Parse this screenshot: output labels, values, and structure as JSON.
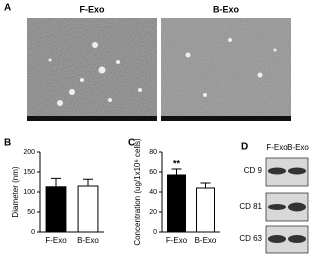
{
  "panel_labels": [
    "A",
    "B",
    "C",
    "D"
  ],
  "images": [
    {
      "label": "F-Exo"
    },
    {
      "label": "B-Exo"
    }
  ],
  "chart_data": [
    {
      "type": "bar",
      "ylabel": "Diameter (nm)",
      "categories": [
        "F-Exo",
        "B-Exo"
      ],
      "values": [
        113,
        115
      ],
      "errors": [
        21,
        17
      ],
      "colors": [
        "#000000",
        "#ffffff"
      ],
      "ylim": [
        0,
        200
      ],
      "yticks": [
        0,
        50,
        100,
        150,
        200
      ]
    },
    {
      "type": "bar",
      "ylabel": "Concentration (ug/1x10⁶ cells)",
      "categories": [
        "F-Exo",
        "B-Exo"
      ],
      "values": [
        57,
        44
      ],
      "errors": [
        6,
        5
      ],
      "value_annotations": [
        "**",
        null
      ],
      "colors": [
        "#000000",
        "#ffffff"
      ],
      "ylim": [
        0,
        80
      ],
      "yticks": [
        0,
        20,
        40,
        60,
        80
      ]
    }
  ],
  "blot": {
    "lanes": [
      "F-Exo",
      "B-Exo"
    ],
    "rows": [
      "CD 9",
      "CD 81",
      "CD 63"
    ]
  }
}
